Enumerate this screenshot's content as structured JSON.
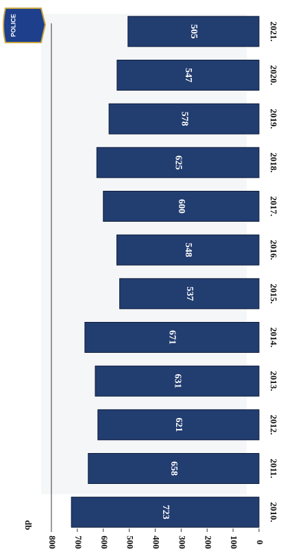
{
  "chart_data": {
    "type": "bar",
    "badge": "POLICE",
    "ylabel": "db",
    "categories": [
      "2010.",
      "2011.",
      "2012.",
      "2013.",
      "2014.",
      "2015.",
      "2016.",
      "2017.",
      "2018.",
      "2019.",
      "2020.",
      "2021."
    ],
    "values": [
      723,
      658,
      621,
      631,
      671,
      537,
      548,
      600,
      625,
      578,
      547,
      505
    ],
    "color": "#223d70",
    "ylim": [
      0,
      800
    ],
    "yticks": [
      0,
      100,
      200,
      300,
      400,
      500,
      600,
      700,
      800
    ],
    "grid": false
  }
}
